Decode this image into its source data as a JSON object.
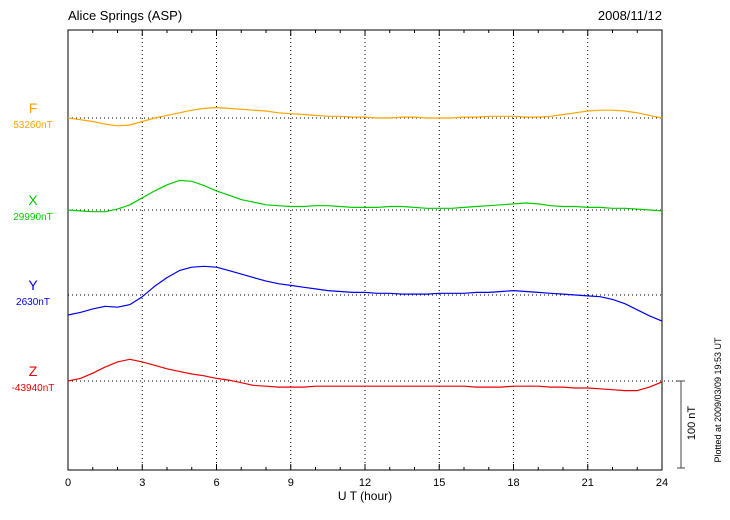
{
  "header": {
    "title": "Alice Springs (ASP)",
    "date": "2008/11/12"
  },
  "axis": {
    "xlabel": "U T (hour)",
    "xmin": 0,
    "xmax": 24,
    "ticks": [
      0,
      3,
      6,
      9,
      12,
      15,
      18,
      21,
      24
    ]
  },
  "scale_bar": {
    "label": "100 nT",
    "nT": 100
  },
  "footer_note": "Plotted at 2009/03/09 19:53 UT",
  "chart_data": {
    "type": "line",
    "title": "Alice Springs (ASP) magnetogram",
    "date": "2008/11/12",
    "xlabel": "U T (hour)",
    "xlim": [
      0,
      24
    ],
    "grid": "dotted vertical every 3 hours, dotted horizontal baseline per trace",
    "scale": {
      "bar_nT": 100
    },
    "x_hours": [
      0,
      0.5,
      1,
      1.5,
      2,
      2.5,
      3,
      3.5,
      4,
      4.5,
      5,
      5.5,
      6,
      6.5,
      7,
      7.5,
      8,
      8.5,
      9,
      9.5,
      10,
      10.5,
      11,
      11.5,
      12,
      12.5,
      13,
      13.5,
      14,
      14.5,
      15,
      15.5,
      16,
      16.5,
      17,
      17.5,
      18,
      18.5,
      19,
      19.5,
      20,
      20.5,
      21,
      21.5,
      22,
      22.5,
      23,
      23.5,
      24
    ],
    "series": [
      {
        "name": "F",
        "color": "#FFA500",
        "base_label": "53260nT",
        "base_value": 53260,
        "deviation_nT": [
          0,
          -2,
          -4,
          -7,
          -9,
          -8,
          -4,
          0,
          3,
          6,
          9,
          11,
          12,
          11,
          10,
          9,
          8,
          6,
          5,
          4,
          3,
          2,
          2,
          1,
          1,
          0,
          0,
          1,
          1,
          0,
          0,
          0,
          1,
          1,
          2,
          2,
          2,
          1,
          1,
          2,
          4,
          6,
          8,
          9,
          9,
          8,
          6,
          3,
          0
        ]
      },
      {
        "name": "X",
        "color": "#00CC00",
        "base_label": "29990nT",
        "base_value": 29990,
        "deviation_nT": [
          0,
          -1,
          -2,
          -2,
          1,
          6,
          14,
          22,
          29,
          34,
          33,
          28,
          22,
          17,
          12,
          9,
          6,
          5,
          4,
          4,
          5,
          5,
          4,
          3,
          3,
          3,
          4,
          4,
          3,
          2,
          2,
          2,
          3,
          4,
          5,
          6,
          7,
          8,
          7,
          5,
          4,
          4,
          3,
          3,
          2,
          2,
          1,
          0,
          -1
        ]
      },
      {
        "name": "Y",
        "color": "#0000EE",
        "base_label": "2630nT",
        "base_value": 2630,
        "deviation_nT": [
          -23,
          -20,
          -16,
          -13,
          -14,
          -11,
          -2,
          10,
          20,
          28,
          32,
          33,
          32,
          28,
          24,
          20,
          16,
          13,
          11,
          9,
          7,
          5,
          4,
          3,
          3,
          2,
          2,
          1,
          1,
          1,
          2,
          2,
          2,
          3,
          3,
          4,
          5,
          4,
          3,
          2,
          1,
          0,
          -1,
          -2,
          -5,
          -10,
          -17,
          -24,
          -30
        ]
      },
      {
        "name": "Z",
        "color": "#EE0000",
        "base_label": "-43940nT",
        "base_value": -43940,
        "deviation_nT": [
          0,
          3,
          9,
          16,
          22,
          25,
          22,
          18,
          14,
          11,
          8,
          6,
          3,
          1,
          -2,
          -5,
          -6,
          -7,
          -7,
          -7,
          -6,
          -6,
          -6,
          -6,
          -6,
          -6,
          -6,
          -6,
          -6,
          -6,
          -6,
          -6,
          -6,
          -7,
          -7,
          -7,
          -6,
          -6,
          -6,
          -7,
          -7,
          -8,
          -8,
          -9,
          -10,
          -11,
          -11,
          -7,
          -1
        ]
      }
    ]
  }
}
